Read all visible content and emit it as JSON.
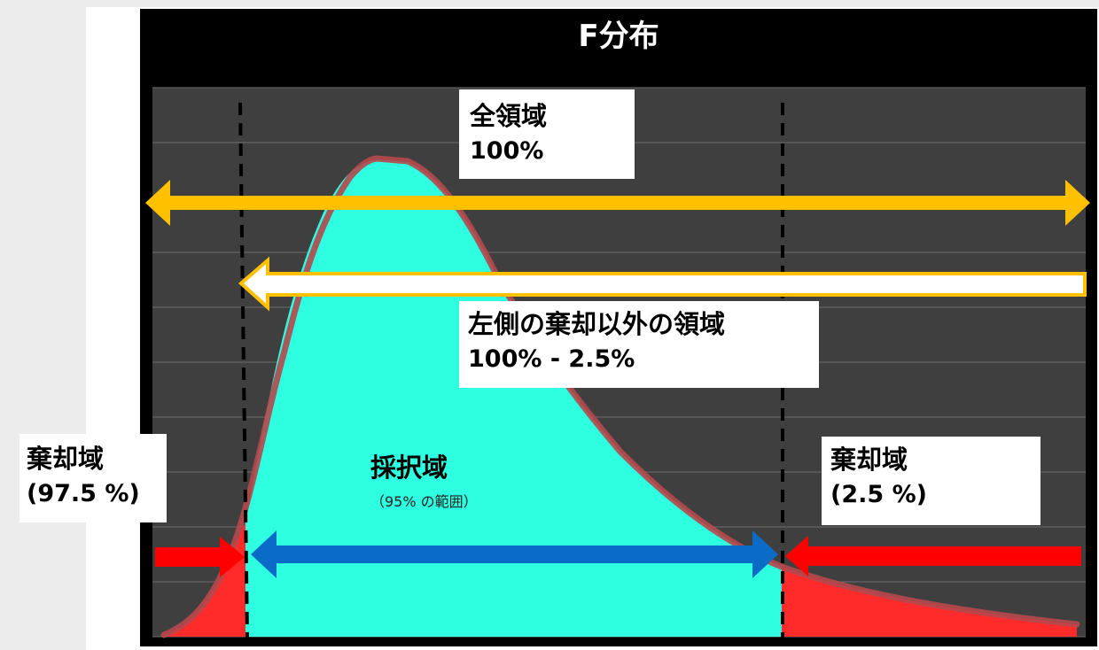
{
  "title": "F分布",
  "labels": {
    "total_region": {
      "line1": "全領域",
      "line2": "100%"
    },
    "non_left_reject_region": {
      "line1": "左側の棄却以外の領域",
      "line2": "100% - 2.5%"
    },
    "left_reject_region": {
      "line1": "棄却域",
      "line2": "(97.5 %)"
    },
    "right_reject_region": {
      "line1": "棄却域",
      "line2": "(2.5 %)"
    },
    "accept_region": {
      "line1": "採択域",
      "line2": "（95% の範囲）"
    }
  },
  "colors": {
    "background": "#000000",
    "plot_area": "#3f3f3f",
    "gridline": "#6e6e6e",
    "curve_fill": "#2effe0",
    "curve_edge": "#b5484c",
    "reject_fill": "#ff2b2b",
    "total_arrow": "#ffc000",
    "non_left_arrow_fill": "#ffffff",
    "non_left_arrow_stroke": "#ffc000",
    "reject_arrow": "#ff0000",
    "accept_arrow": "#0a6cc7",
    "critical_line": "#000000"
  }
}
